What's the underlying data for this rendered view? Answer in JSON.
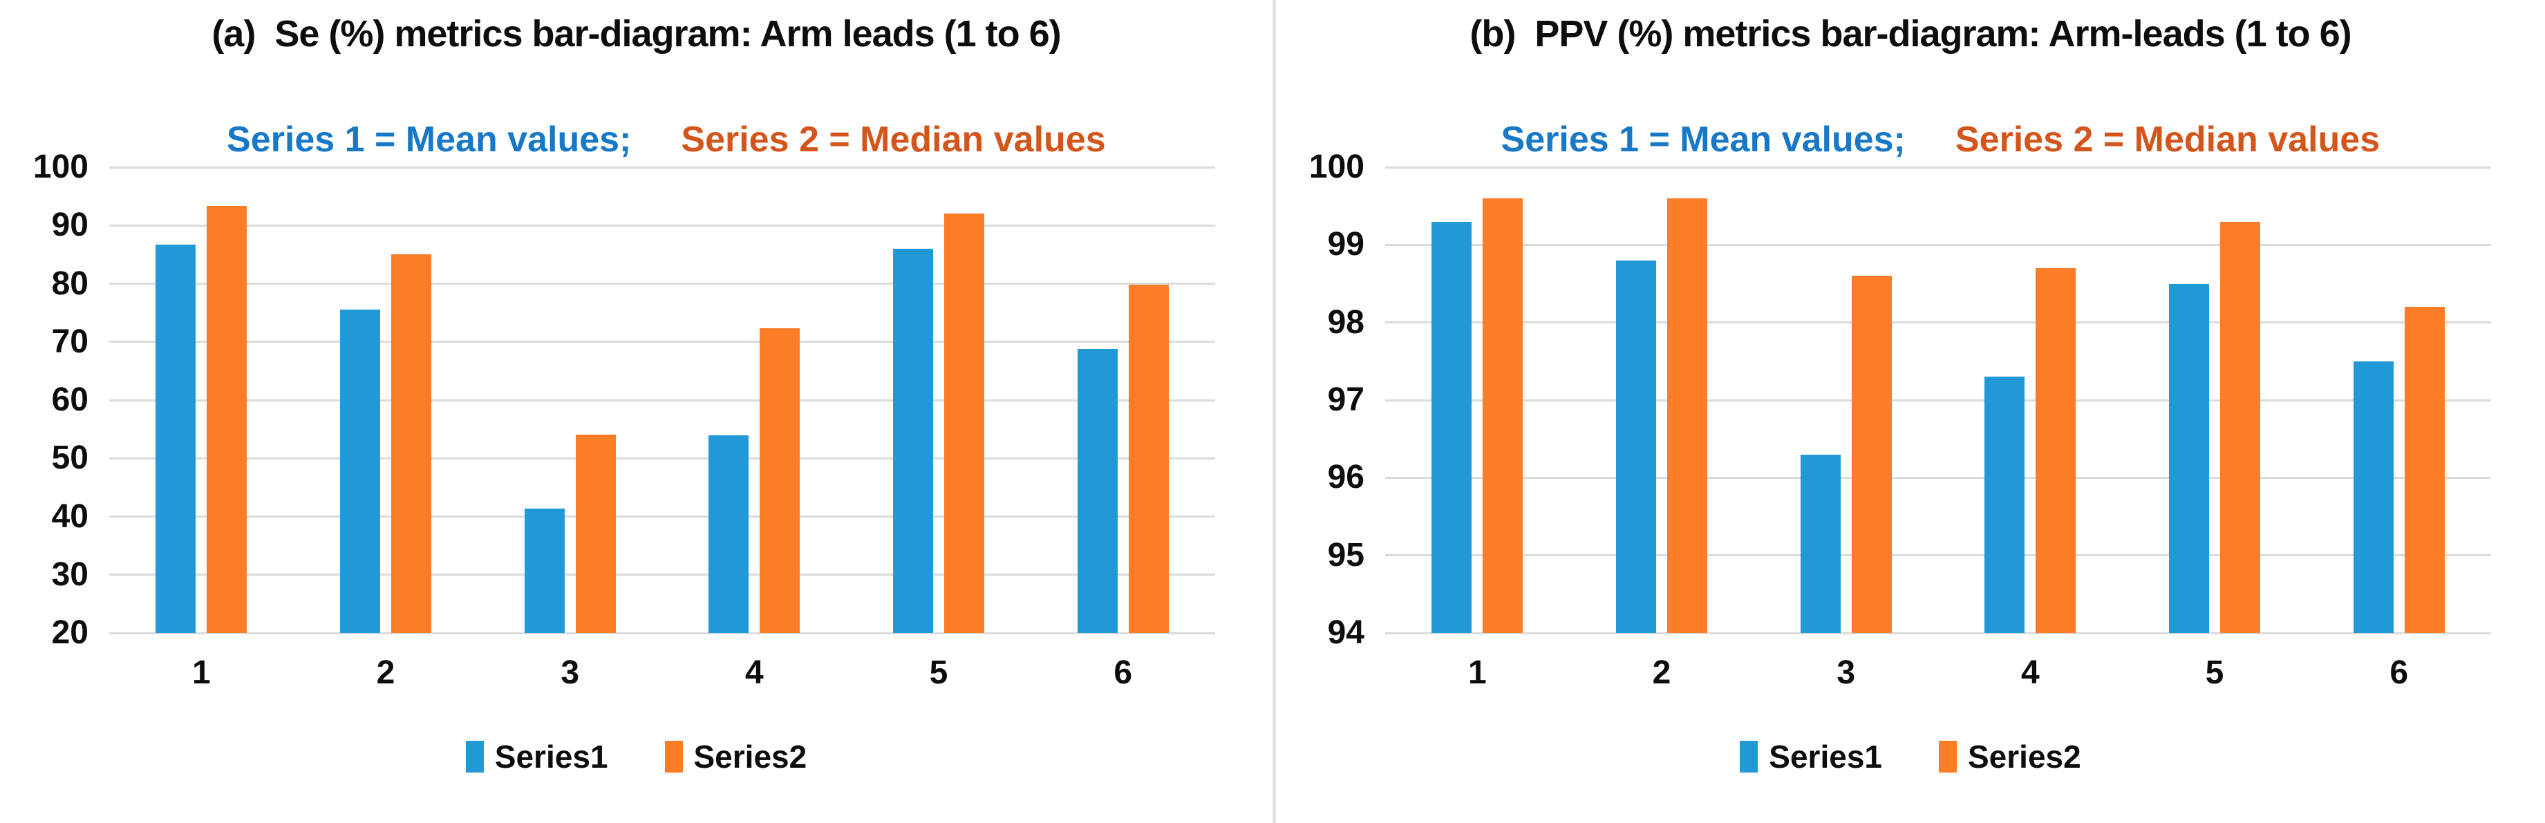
{
  "figure": {
    "background": "#FFFFFF",
    "divider_color": "#E3E3E3"
  },
  "colors": {
    "series1_bar": "#2199D6",
    "series2_bar": "#FB7D27",
    "series1_note": "#1878C8",
    "series2_note": "#D4551B",
    "gridline": "#DBDBDB",
    "text": "#0D0D0D"
  },
  "chart_data": [
    {
      "type": "bar",
      "title": "(a)  Se (%) metrics bar-diagram: Arm leads (1 to 6)",
      "note_series1": "Series 1 = Mean values;",
      "note_series2": "Series 2 = Median values",
      "xlabel": "",
      "ylabel": "",
      "categories": [
        "1",
        "2",
        "3",
        "4",
        "5",
        "6"
      ],
      "series": [
        {
          "name": "Series1",
          "meaning": "Mean values",
          "color": "#2199D6",
          "values": [
            86.7,
            75.5,
            41.4,
            53.9,
            86.0,
            68.8
          ]
        },
        {
          "name": "Series2",
          "meaning": "Median values",
          "color": "#FB7D27",
          "values": [
            93.3,
            85.0,
            54.1,
            72.4,
            92.1,
            79.8
          ]
        }
      ],
      "ylim": [
        20,
        100
      ],
      "ytick_step": 10,
      "grid": true,
      "legend_position": "bottom"
    },
    {
      "type": "bar",
      "title": "(b)  PPV (%) metrics bar-diagram: Arm-leads (1 to 6)",
      "note_series1": "Series 1 = Mean values;",
      "note_series2": "Series 2 = Median values",
      "xlabel": "",
      "ylabel": "",
      "categories": [
        "1",
        "2",
        "3",
        "4",
        "5",
        "6"
      ],
      "series": [
        {
          "name": "Series1",
          "meaning": "Mean values",
          "color": "#2199D6",
          "values": [
            99.3,
            98.8,
            96.3,
            97.3,
            98.5,
            97.5
          ]
        },
        {
          "name": "Series2",
          "meaning": "Median values",
          "color": "#FB7D27",
          "values": [
            99.6,
            99.6,
            98.6,
            98.7,
            99.3,
            98.2
          ]
        }
      ],
      "ylim": [
        94,
        100
      ],
      "ytick_step": 1,
      "grid": true,
      "legend_position": "bottom"
    }
  ]
}
